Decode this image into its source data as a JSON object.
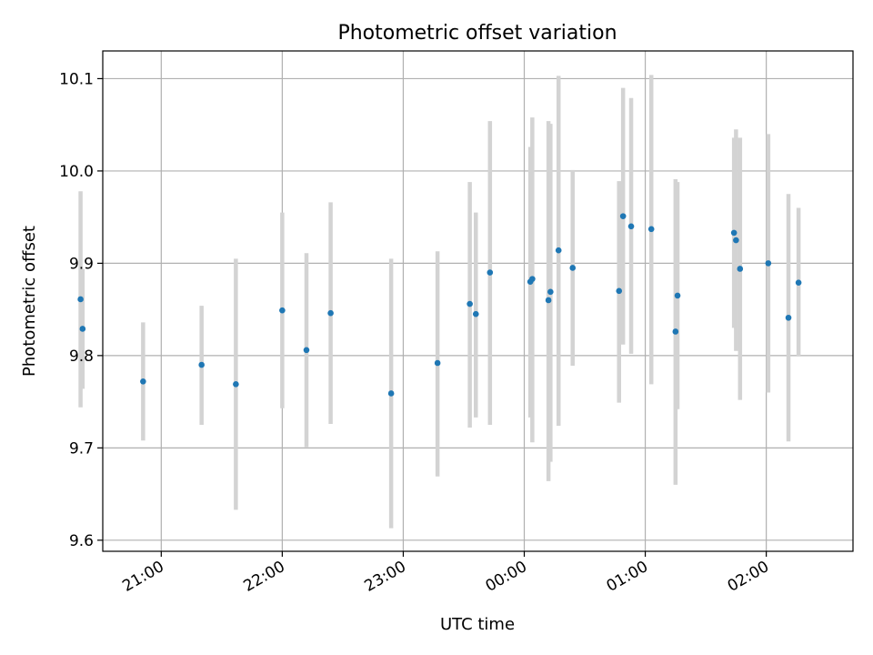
{
  "chart_data": {
    "type": "scatter",
    "title": "Photometric offset variation",
    "xlabel": "UTC time",
    "ylabel": "Photometric offset",
    "x_unit": "UTC time (HH:MM, night spanning midnight)",
    "xlim": [
      "20:31",
      "02:43"
    ],
    "ylim": [
      9.588,
      10.13
    ],
    "grid": true,
    "x_ticks": [
      "21:00",
      "22:00",
      "23:00",
      "00:00",
      "01:00",
      "02:00"
    ],
    "y_ticks": [
      "9.6",
      "9.7",
      "9.8",
      "9.9",
      "10.0",
      "10.1"
    ],
    "marker_color": "#1f77b4",
    "errorbar_color": "#d3d3d3",
    "points": [
      {
        "x": "20:20",
        "y": 9.861,
        "ylow": 9.744,
        "yhigh": 9.978
      },
      {
        "x": "20:21",
        "y": 9.829,
        "ylow": 9.764,
        "yhigh": 9.894
      },
      {
        "x": "20:51",
        "y": 9.772,
        "ylow": 9.708,
        "yhigh": 9.836
      },
      {
        "x": "21:20",
        "y": 9.79,
        "ylow": 9.725,
        "yhigh": 9.854
      },
      {
        "x": "21:37",
        "y": 9.769,
        "ylow": 9.633,
        "yhigh": 9.905
      },
      {
        "x": "22:00",
        "y": 9.849,
        "ylow": 9.743,
        "yhigh": 9.955
      },
      {
        "x": "22:12",
        "y": 9.806,
        "ylow": 9.701,
        "yhigh": 9.911
      },
      {
        "x": "22:24",
        "y": 9.846,
        "ylow": 9.726,
        "yhigh": 9.966
      },
      {
        "x": "22:54",
        "y": 9.759,
        "ylow": 9.613,
        "yhigh": 9.905
      },
      {
        "x": "23:17",
        "y": 9.792,
        "ylow": 9.669,
        "yhigh": 9.913
      },
      {
        "x": "23:33",
        "y": 9.856,
        "ylow": 9.722,
        "yhigh": 9.988
      },
      {
        "x": "23:36",
        "y": 9.845,
        "ylow": 9.733,
        "yhigh": 9.955
      },
      {
        "x": "23:43",
        "y": 9.89,
        "ylow": 9.725,
        "yhigh": 10.054
      },
      {
        "x": "00:03",
        "y": 9.88,
        "ylow": 9.733,
        "yhigh": 10.026
      },
      {
        "x": "00:04",
        "y": 9.883,
        "ylow": 9.706,
        "yhigh": 10.058
      },
      {
        "x": "00:12",
        "y": 9.86,
        "ylow": 9.664,
        "yhigh": 10.054
      },
      {
        "x": "00:13",
        "y": 9.869,
        "ylow": 9.685,
        "yhigh": 10.051
      },
      {
        "x": "00:17",
        "y": 9.914,
        "ylow": 9.724,
        "yhigh": 10.103
      },
      {
        "x": "00:24",
        "y": 9.895,
        "ylow": 9.789,
        "yhigh": 10.001
      },
      {
        "x": "00:47",
        "y": 9.87,
        "ylow": 9.749,
        "yhigh": 9.989
      },
      {
        "x": "00:49",
        "y": 9.951,
        "ylow": 9.812,
        "yhigh": 10.09
      },
      {
        "x": "00:53",
        "y": 9.94,
        "ylow": 9.802,
        "yhigh": 10.079
      },
      {
        "x": "01:03",
        "y": 9.937,
        "ylow": 9.769,
        "yhigh": 10.104
      },
      {
        "x": "01:15",
        "y": 9.826,
        "ylow": 9.66,
        "yhigh": 9.991
      },
      {
        "x": "01:16",
        "y": 9.865,
        "ylow": 9.742,
        "yhigh": 9.988
      },
      {
        "x": "01:44",
        "y": 9.933,
        "ylow": 9.83,
        "yhigh": 10.036
      },
      {
        "x": "01:45",
        "y": 9.925,
        "ylow": 9.805,
        "yhigh": 10.045
      },
      {
        "x": "01:47",
        "y": 9.894,
        "ylow": 9.752,
        "yhigh": 10.036
      },
      {
        "x": "02:01",
        "y": 9.9,
        "ylow": 9.76,
        "yhigh": 10.04
      },
      {
        "x": "02:11",
        "y": 9.841,
        "ylow": 9.707,
        "yhigh": 9.975
      },
      {
        "x": "02:16",
        "y": 9.879,
        "ylow": 9.799,
        "yhigh": 9.96
      }
    ]
  }
}
